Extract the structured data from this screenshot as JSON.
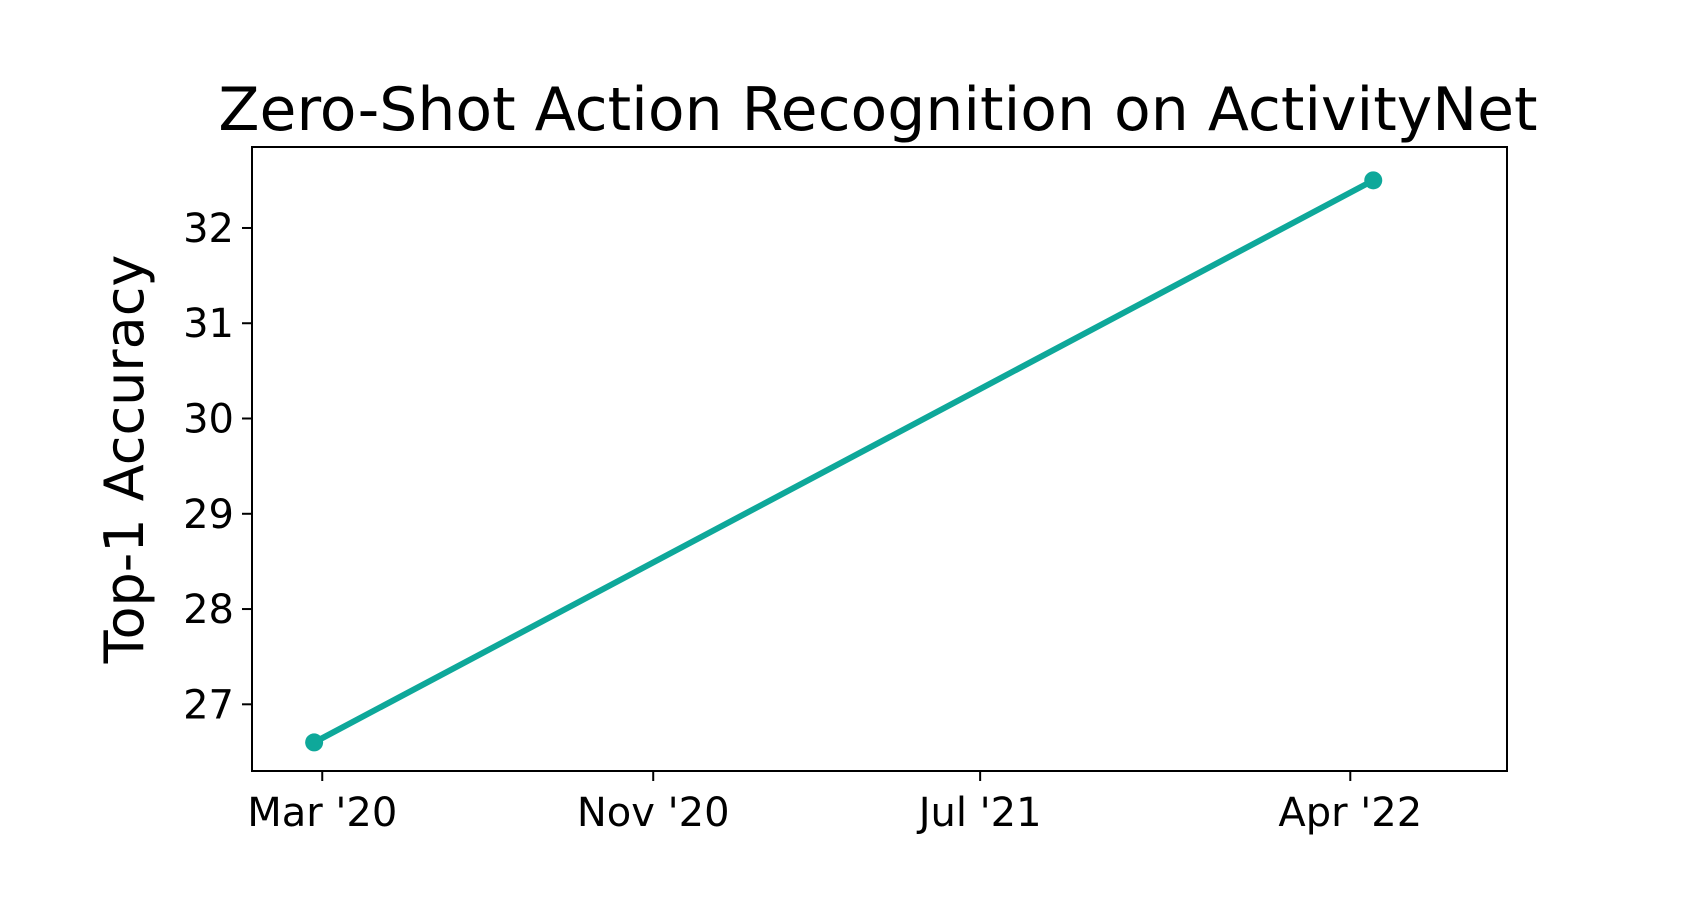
{
  "chart_data": {
    "type": "line",
    "title": "Zero-Shot Action Recognition on ActivityNet",
    "xlabel": "",
    "ylabel": "Top-1 Accuracy",
    "x_type": "date",
    "xlim": [
      "2020-01-09",
      "2022-07-26"
    ],
    "ylim": [
      26.3,
      32.85
    ],
    "grid": false,
    "x_ticks": [
      {
        "date": "2020-03-01",
        "label": "Mar '20"
      },
      {
        "date": "2020-11-01",
        "label": "Nov '20"
      },
      {
        "date": "2021-07-01",
        "label": "Jul '21"
      },
      {
        "date": "2022-04-01",
        "label": "Apr '22"
      }
    ],
    "y_ticks": [
      27,
      28,
      29,
      30,
      31,
      32
    ],
    "series": [
      {
        "color": "#0ea89a",
        "points": [
          {
            "x": "2020-02-24",
            "y": 26.6
          },
          {
            "x": "2022-04-18",
            "y": 32.5
          }
        ]
      }
    ]
  }
}
